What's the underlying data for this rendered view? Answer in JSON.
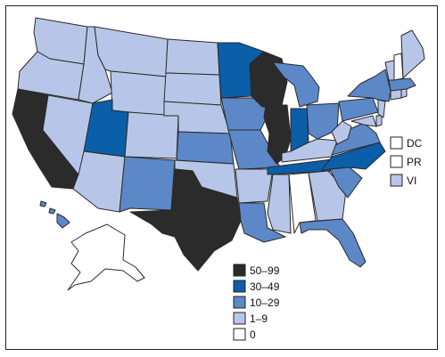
{
  "colors": {
    "c50_99": "#2b2b2b",
    "c30_49": "#0b5ea8",
    "c10_29": "#5c88c8",
    "c1_9": "#b7c6e8",
    "c0": "#ffffff"
  },
  "legend": [
    {
      "label": "50–99",
      "color_key": "c50_99"
    },
    {
      "label": "30–49",
      "color_key": "c30_49"
    },
    {
      "label": "10–29",
      "color_key": "c10_29"
    },
    {
      "label": "1–9",
      "color_key": "c1_9"
    },
    {
      "label": "0",
      "color_key": "c0"
    }
  ],
  "territories": [
    {
      "label": "DC",
      "color_key": "c0"
    },
    {
      "label": "PR",
      "color_key": "c0"
    },
    {
      "label": "VI",
      "color_key": "c1_9"
    }
  ],
  "states": {
    "WA": "c1_9",
    "OR": "c1_9",
    "CA": "c50_99",
    "NV": "c1_9",
    "ID": "c1_9",
    "MT": "c1_9",
    "WY": "c1_9",
    "UT": "c30_49",
    "AZ": "c1_9",
    "CO": "c1_9",
    "NM": "c10_29",
    "ND": "c1_9",
    "SD": "c1_9",
    "NE": "c1_9",
    "KS": "c10_29",
    "OK": "c1_9",
    "TX": "c50_99",
    "MN": "c30_49",
    "IA": "c10_29",
    "MO": "c10_29",
    "AR": "c1_9",
    "LA": "c10_29",
    "WI": "c50_99",
    "IL": "c50_99",
    "MI": "c10_29",
    "IN": "c30_49",
    "OH": "c10_29",
    "KY": "c1_9",
    "TN": "c30_49",
    "MS": "c1_9",
    "AL": "c0",
    "GA": "c1_9",
    "FL": "c10_29",
    "SC": "c10_29",
    "NC": "c30_49",
    "VA": "c10_29",
    "WV": "c1_9",
    "PA": "c10_29",
    "NY": "c10_29",
    "VT": "c1_9",
    "NH": "c0",
    "ME": "c1_9",
    "MA": "c10_29",
    "CT": "c1_9",
    "RI": "c1_9",
    "NJ": "c1_9",
    "DE": "c1_9",
    "MD": "c1_9",
    "AK": "c0",
    "HI": "c10_29"
  }
}
